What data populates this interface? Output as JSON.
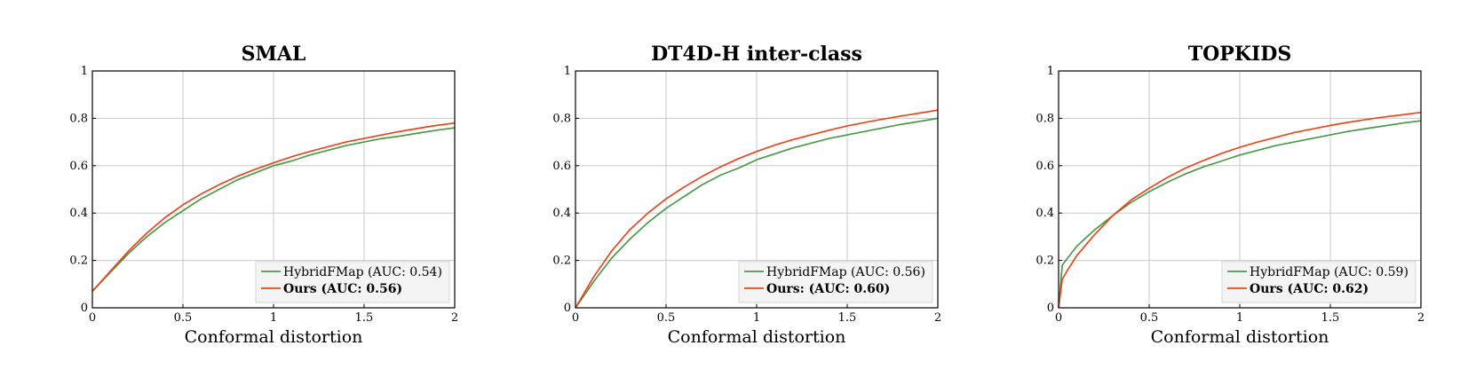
{
  "chart_data": [
    {
      "type": "line",
      "title": "SMAL",
      "xlabel": "Conformal distortion",
      "ylabel": "",
      "xlim": [
        0,
        2
      ],
      "ylim": [
        0,
        1
      ],
      "xticks": [
        "0",
        "0.5",
        "1",
        "1.5",
        "2"
      ],
      "yticks": [
        "0",
        "0.2",
        "0.4",
        "0.6",
        "0.8",
        "1"
      ],
      "grid": true,
      "legend_position": "bottom-right",
      "series": [
        {
          "name": "HybridFMap (AUC: 0.54)",
          "color": "#4a9a4a",
          "bold": false,
          "x": [
            0,
            0.1,
            0.2,
            0.3,
            0.4,
            0.5,
            0.6,
            0.7,
            0.8,
            0.9,
            1.0,
            1.1,
            1.2,
            1.3,
            1.4,
            1.5,
            1.6,
            1.7,
            1.8,
            1.9,
            2.0
          ],
          "y": [
            0.07,
            0.15,
            0.23,
            0.3,
            0.36,
            0.41,
            0.46,
            0.5,
            0.54,
            0.57,
            0.6,
            0.62,
            0.645,
            0.665,
            0.685,
            0.7,
            0.715,
            0.725,
            0.738,
            0.75,
            0.76
          ]
        },
        {
          "name": "Ours (AUC: 0.56)",
          "color": "#e8471c",
          "bold": true,
          "x": [
            0,
            0.1,
            0.2,
            0.3,
            0.4,
            0.5,
            0.6,
            0.7,
            0.8,
            0.9,
            1.0,
            1.1,
            1.2,
            1.3,
            1.4,
            1.5,
            1.6,
            1.7,
            1.8,
            1.9,
            2.0
          ],
          "y": [
            0.07,
            0.155,
            0.24,
            0.315,
            0.38,
            0.435,
            0.48,
            0.52,
            0.555,
            0.585,
            0.612,
            0.638,
            0.66,
            0.68,
            0.7,
            0.715,
            0.73,
            0.745,
            0.758,
            0.77,
            0.78
          ]
        }
      ]
    },
    {
      "type": "line",
      "title": "DT4D-H inter-class",
      "xlabel": "Conformal distortion",
      "ylabel": "",
      "xlim": [
        0,
        2
      ],
      "ylim": [
        0,
        1
      ],
      "xticks": [
        "0",
        "0.5",
        "1",
        "1.5",
        "2"
      ],
      "yticks": [
        "0",
        "0.2",
        "0.4",
        "0.6",
        "0.8",
        "1"
      ],
      "grid": true,
      "legend_position": "bottom-right",
      "series": [
        {
          "name": "HybridFMap (AUC: 0.56)",
          "color": "#4a9a4a",
          "bold": false,
          "x": [
            0,
            0.1,
            0.2,
            0.3,
            0.4,
            0.5,
            0.6,
            0.7,
            0.8,
            0.9,
            1.0,
            1.1,
            1.2,
            1.3,
            1.4,
            1.5,
            1.6,
            1.7,
            1.8,
            1.9,
            2.0
          ],
          "y": [
            0.0,
            0.11,
            0.21,
            0.29,
            0.36,
            0.42,
            0.47,
            0.52,
            0.56,
            0.59,
            0.625,
            0.65,
            0.675,
            0.695,
            0.715,
            0.73,
            0.745,
            0.76,
            0.775,
            0.787,
            0.8
          ]
        },
        {
          "name": "Ours: (AUC: 0.60)",
          "color": "#e8471c",
          "bold": true,
          "x": [
            0,
            0.1,
            0.2,
            0.3,
            0.4,
            0.5,
            0.6,
            0.7,
            0.8,
            0.9,
            1.0,
            1.1,
            1.2,
            1.3,
            1.4,
            1.5,
            1.6,
            1.7,
            1.8,
            1.9,
            2.0
          ],
          "y": [
            0.0,
            0.13,
            0.24,
            0.33,
            0.4,
            0.46,
            0.51,
            0.555,
            0.595,
            0.63,
            0.66,
            0.687,
            0.71,
            0.73,
            0.75,
            0.768,
            0.783,
            0.797,
            0.81,
            0.822,
            0.835
          ]
        }
      ]
    },
    {
      "type": "line",
      "title": "TOPKIDS",
      "xlabel": "Conformal distortion",
      "ylabel": "",
      "xlim": [
        0,
        2
      ],
      "ylim": [
        0,
        1
      ],
      "xticks": [
        "0",
        "0.5",
        "1",
        "1.5",
        "2"
      ],
      "yticks": [
        "0",
        "0.2",
        "0.4",
        "0.6",
        "0.8",
        "1"
      ],
      "grid": true,
      "legend_position": "bottom-right",
      "series": [
        {
          "name": "HybridFMap (AUC: 0.59)",
          "color": "#4a9a4a",
          "bold": false,
          "x": [
            0,
            0.02,
            0.05,
            0.1,
            0.2,
            0.3,
            0.4,
            0.5,
            0.6,
            0.7,
            0.8,
            0.9,
            1.0,
            1.1,
            1.2,
            1.3,
            1.4,
            1.5,
            1.6,
            1.7,
            1.8,
            1.9,
            2.0
          ],
          "y": [
            0.0,
            0.18,
            0.21,
            0.26,
            0.33,
            0.39,
            0.445,
            0.49,
            0.53,
            0.565,
            0.595,
            0.62,
            0.645,
            0.665,
            0.685,
            0.7,
            0.715,
            0.73,
            0.745,
            0.757,
            0.768,
            0.78,
            0.79
          ]
        },
        {
          "name": "Ours (AUC: 0.62)",
          "color": "#e8471c",
          "bold": true,
          "x": [
            0,
            0.02,
            0.05,
            0.1,
            0.2,
            0.3,
            0.4,
            0.5,
            0.6,
            0.7,
            0.8,
            0.9,
            1.0,
            1.1,
            1.2,
            1.3,
            1.4,
            1.5,
            1.6,
            1.7,
            1.8,
            1.9,
            2.0
          ],
          "y": [
            0.0,
            0.12,
            0.16,
            0.22,
            0.31,
            0.39,
            0.455,
            0.505,
            0.55,
            0.59,
            0.622,
            0.652,
            0.678,
            0.7,
            0.72,
            0.74,
            0.755,
            0.77,
            0.783,
            0.795,
            0.806,
            0.815,
            0.825
          ]
        }
      ]
    }
  ]
}
